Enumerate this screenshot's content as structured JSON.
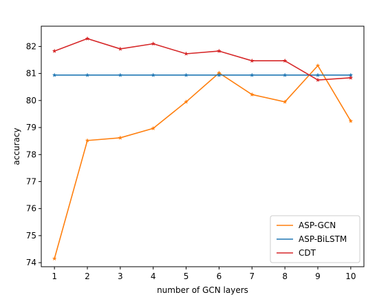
{
  "chart_data": {
    "type": "line",
    "xlabel": "number of GCN layers",
    "ylabel": "accuracy",
    "x": [
      1,
      2,
      3,
      4,
      5,
      6,
      7,
      8,
      9,
      10
    ],
    "xlim": [
      0.6,
      10.4
    ],
    "ylim": [
      73.85,
      82.75
    ],
    "yticks": [
      74,
      75,
      76,
      77,
      78,
      79,
      80,
      81,
      82
    ],
    "legend_position": "lower-right",
    "grid": false,
    "series": [
      {
        "name": "ASP-GCN",
        "color": "#ff7f0e",
        "values": [
          74.15,
          78.52,
          78.62,
          78.97,
          79.95,
          81.02,
          80.22,
          79.95,
          81.29,
          79.24
        ]
      },
      {
        "name": "ASP-BiLSTM",
        "color": "#1f77b4",
        "values": [
          80.94,
          80.94,
          80.94,
          80.94,
          80.94,
          80.94,
          80.94,
          80.94,
          80.94,
          80.94
        ]
      },
      {
        "name": "CDT",
        "color": "#d62728",
        "values": [
          81.83,
          82.29,
          81.91,
          82.1,
          81.73,
          81.83,
          81.47,
          81.47,
          80.76,
          80.84
        ]
      }
    ]
  }
}
